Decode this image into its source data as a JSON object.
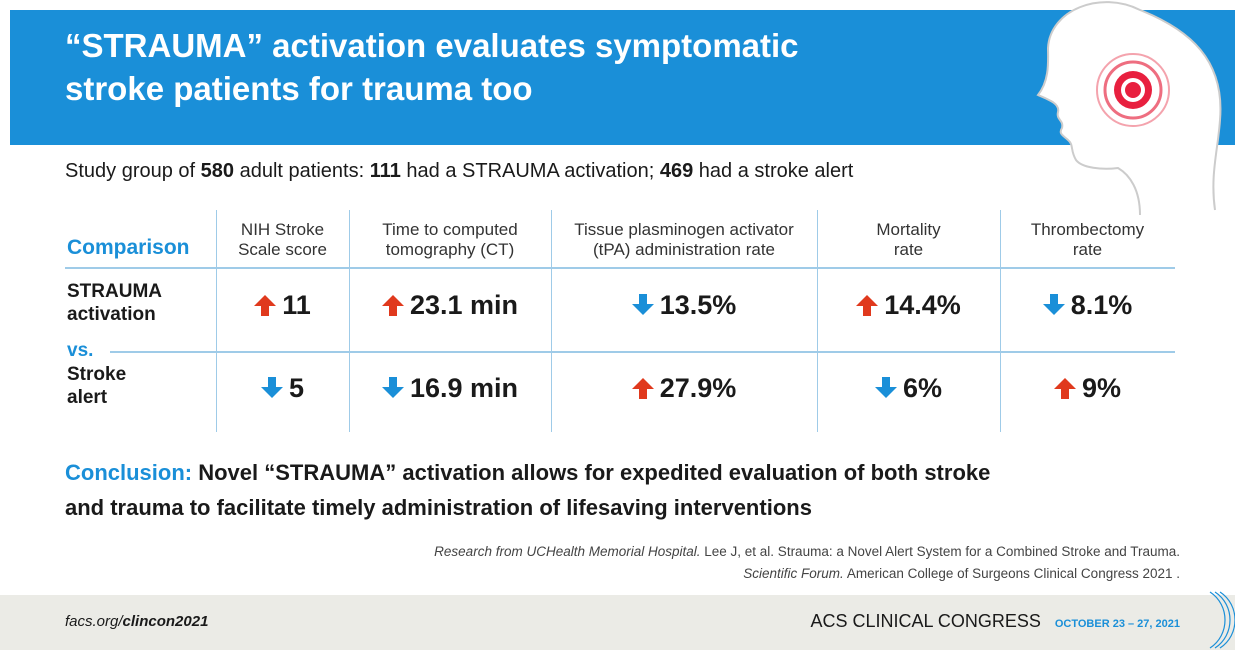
{
  "header": {
    "title_lines": [
      "“STRAUMA” activation evaluates symptomatic",
      "stroke patients for trauma too"
    ]
  },
  "subtitle": [
    {
      "text": "Study group of ",
      "bold": false
    },
    {
      "text": "580",
      "bold": true
    },
    {
      "text": " adult patients: ",
      "bold": false
    },
    {
      "text": "111",
      "bold": true
    },
    {
      "text": " had a STRAUMA activation; ",
      "bold": false
    },
    {
      "text": "469",
      "bold": true
    },
    {
      "text": " had a stroke alert",
      "bold": false
    }
  ],
  "table": {
    "corner": "Comparison",
    "columns": [
      [
        "NIH Stroke",
        "Scale score"
      ],
      [
        "Time to computed",
        "tomography (CT)"
      ],
      [
        "Tissue plasminogen activator",
        "(tPA) administration rate"
      ],
      [
        "Mortality",
        "rate"
      ],
      [
        "Thrombectomy",
        "rate"
      ]
    ],
    "separator": "vs.",
    "rows": [
      {
        "label": [
          "STRAUMA",
          "activation"
        ],
        "cells": [
          {
            "text": "11",
            "direction": "up"
          },
          {
            "text": "23.1 min",
            "direction": "up"
          },
          {
            "text": "13.5%",
            "direction": "down"
          },
          {
            "text": "14.4%",
            "direction": "up"
          },
          {
            "text": "8.1%",
            "direction": "down"
          }
        ]
      },
      {
        "label": [
          "Stroke",
          "alert"
        ],
        "cells": [
          {
            "text": "5",
            "direction": "down"
          },
          {
            "text": "16.9 min",
            "direction": "down"
          },
          {
            "text": "27.9%",
            "direction": "up"
          },
          {
            "text": "6%",
            "direction": "down"
          },
          {
            "text": "9%",
            "direction": "up"
          }
        ]
      }
    ]
  },
  "conclusion": {
    "label": "Conclusion:",
    "lines": [
      "Novel “STRAUMA” activation allows for expedited evaluation of both stroke",
      "and trauma to facilitate timely administration of lifesaving interventions"
    ]
  },
  "citation": [
    [
      {
        "text": "Research from UCHealth Memorial Hospital.",
        "italic": true
      },
      {
        "text": " Lee J, et al. Strauma: a Novel Alert System for a Combined Stroke and Trauma.",
        "italic": false
      }
    ],
    [
      {
        "text": "Scientific Forum.",
        "italic": true
      },
      {
        "text": " American College of Surgeons Clinical Congress 2021 .",
        "italic": false
      }
    ]
  ],
  "footer": {
    "url_plain": "facs.org/",
    "url_bold": "clincon2021",
    "brand": "ACS CLINICAL CONGRESS",
    "dates": "OCTOBER 23 – 27, 2021"
  }
}
